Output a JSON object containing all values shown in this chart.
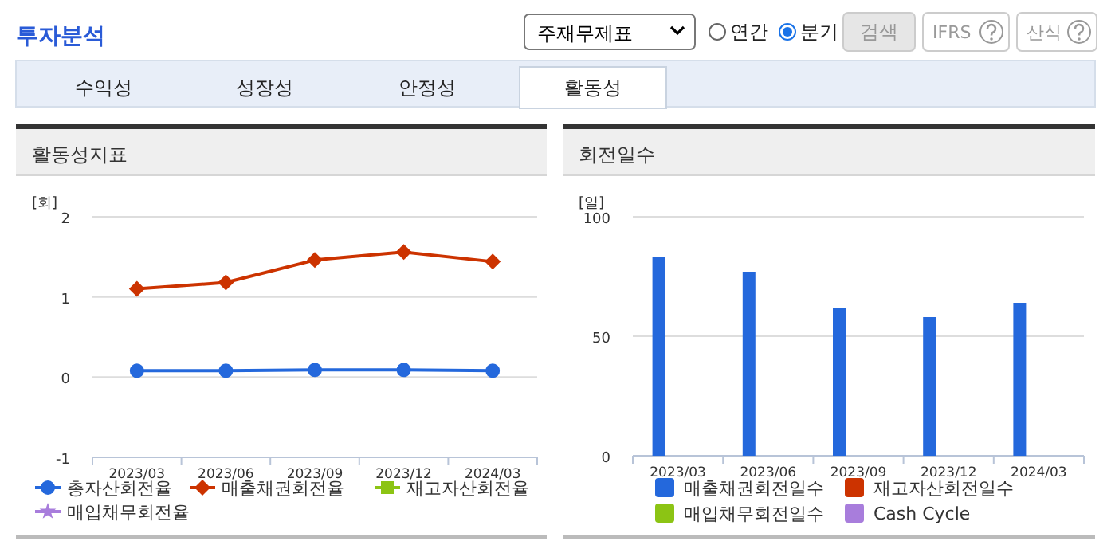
{
  "chart_data": [
    {
      "type": "other",
      "title": "투자분석",
      "annotations": [
        "주재무제표",
        "연간",
        "분기",
        "검색",
        "IFRS",
        "산식",
        "수익성",
        "성장성",
        "안정성",
        "활동성"
      ]
    },
    {
      "type": "line",
      "title": "활동성지표",
      "ylabel": "[회]",
      "categories": [
        "2023/03",
        "2023/06",
        "2023/09",
        "2023/12",
        "2024/03"
      ],
      "ylim": [
        -1,
        2
      ],
      "yticks": [
        -1,
        0,
        1,
        2
      ],
      "grid": "y",
      "legend": "bottom",
      "series": [
        {
          "name": "총자산회전율",
          "color": "#2468dc",
          "marker": "circle",
          "values": [
            0.08,
            0.08,
            0.09,
            0.09,
            0.08
          ]
        },
        {
          "name": "매출채권회전율",
          "color": "#cc3300",
          "marker": "diamond",
          "values": [
            1.1,
            1.18,
            1.46,
            1.56,
            1.44
          ]
        },
        {
          "name": "재고자산회전율",
          "color": "#8cc414",
          "marker": "square",
          "values": [
            null,
            null,
            null,
            null,
            null
          ]
        },
        {
          "name": "매입채무회전율",
          "color": "#a87ddc",
          "marker": "star",
          "values": [
            null,
            null,
            null,
            null,
            null
          ]
        }
      ]
    },
    {
      "type": "bar",
      "title": "회전일수",
      "ylabel": "[일]",
      "categories": [
        "2023/03",
        "2023/06",
        "2023/09",
        "2023/12",
        "2024/03"
      ],
      "ylim": [
        0,
        100
      ],
      "yticks": [
        0,
        50,
        100
      ],
      "grid": "y",
      "legend": "bottom",
      "series": [
        {
          "name": "매출채권회전일수",
          "color": "#2468dc",
          "values": [
            83,
            77,
            62,
            58,
            64
          ]
        },
        {
          "name": "재고자산회전일수",
          "color": "#cc3300",
          "values": [
            null,
            null,
            null,
            null,
            null
          ]
        },
        {
          "name": "매입채무회전일수",
          "color": "#8cc414",
          "values": [
            null,
            null,
            null,
            null,
            null
          ]
        },
        {
          "name": "Cash Cycle",
          "color": "#a87ddc",
          "values": [
            null,
            null,
            null,
            null,
            null
          ]
        }
      ]
    }
  ]
}
